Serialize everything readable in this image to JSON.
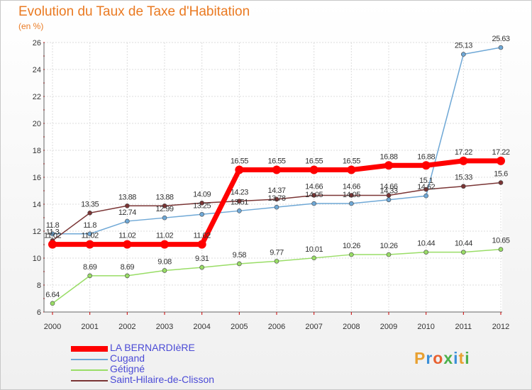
{
  "title": "Evolution du Taux de Taxe d'Habitation",
  "subtitle": "(en %)",
  "logo": {
    "text": "Proxiti",
    "colors": [
      "#e8a030",
      "#3a8fd8",
      "#e86030",
      "#4bb04b",
      "#3a8fd8",
      "#e8a030",
      "#4bb04b"
    ]
  },
  "chart_data": {
    "type": "line",
    "x": [
      "2000",
      "2001",
      "2002",
      "2003",
      "2004",
      "2005",
      "2006",
      "2007",
      "2008",
      "2009",
      "2010",
      "2011",
      "2012"
    ],
    "ylim": [
      6,
      26
    ],
    "yticks": [
      6,
      8,
      10,
      12,
      14,
      16,
      18,
      20,
      22,
      24,
      26
    ],
    "grid": true,
    "legend_position": "bottom-left",
    "series": [
      {
        "name": "LA BERNARDIèRE",
        "color": "#ff0000",
        "width": 7,
        "values": [
          11.02,
          11.02,
          11.02,
          11.02,
          11.02,
          16.55,
          16.55,
          16.55,
          16.55,
          16.88,
          16.88,
          17.22,
          17.22
        ],
        "labels": [
          "11.02",
          "11.02",
          "11.02",
          "11.02",
          "11.02",
          "16.55",
          "16.55",
          "16.55",
          "16.55",
          "16.88",
          "16.88",
          "17.22",
          "17.22"
        ]
      },
      {
        "name": "Cugand",
        "color": "#6fa8d6",
        "width": 1.5,
        "values": [
          11.8,
          11.8,
          12.74,
          12.99,
          13.25,
          13.51,
          13.78,
          14.05,
          14.05,
          14.33,
          14.62,
          25.13,
          25.63
        ],
        "labels": [
          "11.8",
          "11.8",
          "12.74",
          "12.99",
          "13.25",
          "13.51",
          "13.78",
          "14.05",
          "14.05",
          "14.33",
          "14.62",
          "25.13",
          "25.63"
        ]
      },
      {
        "name": "Gétigné",
        "color": "#99dd66",
        "width": 1.5,
        "values": [
          6.64,
          8.69,
          8.69,
          9.08,
          9.31,
          9.58,
          9.77,
          10.01,
          10.26,
          10.26,
          10.44,
          10.44,
          10.65
        ],
        "labels": [
          "6.64",
          "8.69",
          "8.69",
          "9.08",
          "9.31",
          "9.58",
          "9.77",
          "10.01",
          "10.26",
          "10.26",
          "10.44",
          "10.44",
          "10.65"
        ]
      },
      {
        "name": "Saint-Hilaire-de-Clisson",
        "color": "#7a3535",
        "width": 1.5,
        "values": [
          11.3,
          13.35,
          13.88,
          13.88,
          14.09,
          14.23,
          14.37,
          14.66,
          14.66,
          14.66,
          15.1,
          15.33,
          15.6
        ],
        "labels": [
          "11.3",
          "13.35",
          "13.88",
          "13.88",
          "14.09",
          "14.23",
          "14.37",
          "14.66",
          "14.66",
          "14.66",
          "15.1",
          "15.33",
          "15.6"
        ]
      }
    ]
  }
}
